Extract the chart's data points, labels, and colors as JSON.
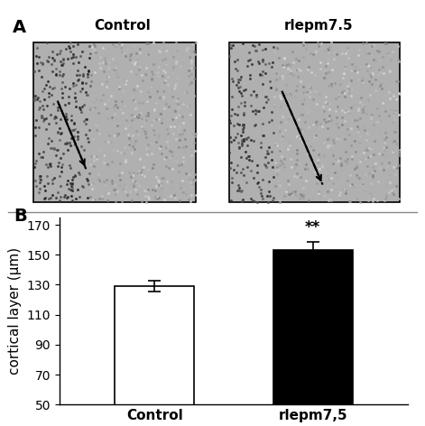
{
  "panel_A_title_left": "Control",
  "panel_A_title_right": "rlepm7.5",
  "panel_label_A": "A",
  "panel_label_B": "B",
  "bar_categories": [
    "Control",
    "rlepm7,5"
  ],
  "bar_values": [
    129.0,
    153.0
  ],
  "bar_errors": [
    3.5,
    5.5
  ],
  "bar_colors": [
    "#ffffff",
    "#000000"
  ],
  "bar_edgecolors": [
    "#000000",
    "#000000"
  ],
  "ylabel": "cortical layer (µm)",
  "ylim": [
    50,
    175
  ],
  "yticks": [
    50,
    70,
    90,
    110,
    130,
    150,
    170
  ],
  "significance_label": "**",
  "significance_bar_index": 1,
  "figure_bg": "#ffffff",
  "panel_bg": "#ffffff",
  "title_fontsize": 11,
  "label_fontsize": 11,
  "tick_fontsize": 10,
  "bar_width": 0.5,
  "error_capsize": 5
}
